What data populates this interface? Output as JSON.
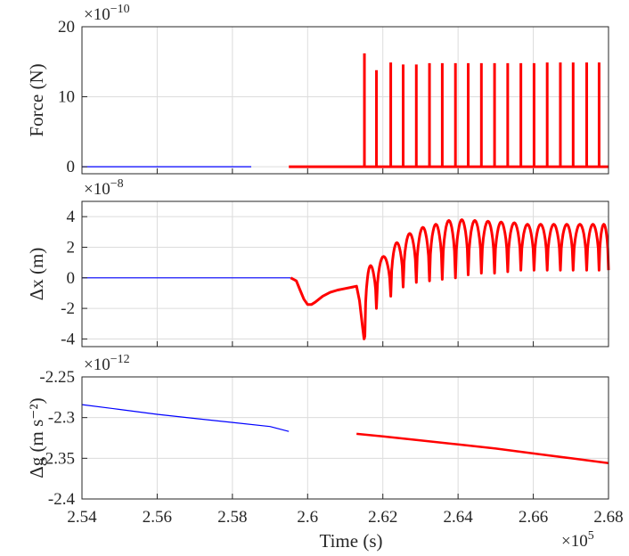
{
  "figure": {
    "xlabel": "Time  (s)",
    "x_multiplier": "×10",
    "x_exponent": "5"
  },
  "chart_data": [
    {
      "type": "line",
      "ylabel": "Force (N)",
      "y_multiplier": "×10",
      "y_exponent": "−10",
      "xlim": [
        2.54,
        2.68
      ],
      "ylim": [
        -1,
        20
      ],
      "yticks": [
        0,
        10,
        20
      ],
      "ytick_labels": [
        "0",
        "10",
        "20"
      ],
      "grid": true,
      "series": [
        {
          "color": "#0000ff",
          "width": 1.2,
          "x": [
            2.54,
            2.585
          ],
          "y": [
            0,
            0
          ]
        },
        {
          "color": "#ff0000",
          "width": 3,
          "x": [
            2.595,
            2.615
          ],
          "y": [
            0,
            0
          ],
          "spikes_x": [
            2.6151,
            2.6183,
            2.6221,
            2.6254,
            2.6289,
            2.6324,
            2.6358,
            2.6393,
            2.6427,
            2.6462,
            2.6497,
            2.6532,
            2.6567,
            2.6602,
            2.6637,
            2.6672,
            2.6706,
            2.6742,
            2.6775
          ],
          "spikes_y": [
            16.2,
            13.8,
            14.9,
            14.6,
            14.6,
            14.8,
            14.8,
            14.8,
            14.8,
            14.8,
            14.8,
            14.8,
            14.8,
            14.8,
            14.9,
            14.9,
            14.9,
            14.9,
            14.9
          ],
          "baseline_end": 2.68
        }
      ]
    },
    {
      "type": "line",
      "ylabel": "Δx (m)",
      "y_multiplier": "×10",
      "y_exponent": "−8",
      "xlim": [
        2.54,
        2.68
      ],
      "ylim": [
        -4.5,
        5
      ],
      "yticks": [
        -4,
        -2,
        0,
        2,
        4
      ],
      "ytick_labels": [
        "-4",
        "-2",
        "0",
        "2",
        "4"
      ],
      "grid": true,
      "series": [
        {
          "color": "#0000ff",
          "width": 1.2,
          "x": [
            2.54,
            2.5955
          ],
          "y": [
            0,
            0
          ]
        },
        {
          "color": "#ff0000",
          "width": 3,
          "x": [
            2.5955,
            2.597,
            2.598,
            2.599,
            2.6,
            2.601,
            2.602,
            2.604,
            2.606,
            2.608,
            2.61,
            2.612,
            2.613,
            2.6138,
            2.6145,
            2.615,
            2.6152
          ],
          "y": [
            0,
            -0.2,
            -0.8,
            -1.4,
            -1.75,
            -1.75,
            -1.6,
            -1.2,
            -0.95,
            -0.8,
            -0.7,
            -0.6,
            -0.55,
            -1.5,
            -3.0,
            -4.0,
            -3.9
          ],
          "arch_start": 2.6152,
          "arch_boundaries": [
            2.6152,
            2.6183,
            2.6221,
            2.6254,
            2.6289,
            2.6324,
            2.6358,
            2.6393,
            2.6427,
            2.6462,
            2.6497,
            2.6532,
            2.6567,
            2.6602,
            2.6637,
            2.6672,
            2.6706,
            2.6742,
            2.6775,
            2.68
          ],
          "arch_tops": [
            0.8,
            1.4,
            2.3,
            2.9,
            3.3,
            3.5,
            3.75,
            3.8,
            3.75,
            3.7,
            3.65,
            3.6,
            3.5,
            3.5,
            3.5,
            3.5,
            3.5,
            3.5,
            3.5
          ],
          "arch_bottoms": [
            -3.9,
            -2.0,
            -1.2,
            -0.6,
            -0.3,
            -0.2,
            -0.1,
            0.0,
            0.2,
            0.3,
            0.3,
            0.4,
            0.5,
            0.5,
            0.5,
            0.5,
            0.5,
            0.5,
            0.5,
            0.5
          ]
        }
      ]
    },
    {
      "type": "line",
      "ylabel": "Δg (m s⁻²)",
      "y_multiplier": "×10",
      "y_exponent": "−12",
      "xlim": [
        2.54,
        2.68
      ],
      "ylim": [
        -2.4,
        -2.25
      ],
      "yticks": [
        -2.4,
        -2.35,
        -2.3,
        -2.25
      ],
      "ytick_labels": [
        "-2.4",
        "-2.35",
        "-2.3",
        "-2.25"
      ],
      "xticks": [
        2.54,
        2.56,
        2.58,
        2.6,
        2.62,
        2.64,
        2.66,
        2.68
      ],
      "xtick_labels": [
        "2.54",
        "2.56",
        "2.58",
        "2.6",
        "2.62",
        "2.64",
        "2.66",
        "2.68"
      ],
      "grid": true,
      "series": [
        {
          "color": "#0000ff",
          "width": 1.2,
          "x": [
            2.54,
            2.55,
            2.56,
            2.57,
            2.58,
            2.59,
            2.595
          ],
          "y": [
            -2.284,
            -2.29,
            -2.296,
            -2.301,
            -2.306,
            -2.311,
            -2.317
          ]
        },
        {
          "color": "#ff0000",
          "width": 2.5,
          "x": [
            2.613,
            2.62,
            2.63,
            2.64,
            2.65,
            2.66,
            2.67,
            2.68
          ],
          "y": [
            -2.32,
            -2.323,
            -2.328,
            -2.333,
            -2.338,
            -2.344,
            -2.35,
            -2.356
          ]
        }
      ]
    }
  ]
}
